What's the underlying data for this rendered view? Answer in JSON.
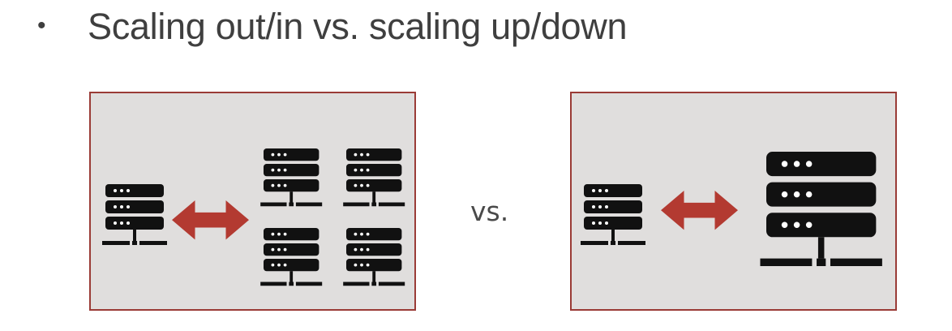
{
  "slide": {
    "bullet": "•",
    "title": "Scaling out/in vs. scaling up/down",
    "vs_label": "vs."
  },
  "colors": {
    "panel_background": "#e0dedd",
    "panel_border": "#9a3b36",
    "arrow": "#b33a31",
    "server_icon": "#111111",
    "text": "#3f3f3f"
  },
  "diagrams": {
    "scale_out": {
      "source_servers": 1,
      "target_servers": 4,
      "arrow": "double-headed"
    },
    "scale_up": {
      "source_servers": 1,
      "target_servers": 1,
      "target_size": "large",
      "arrow": "double-headed"
    }
  }
}
